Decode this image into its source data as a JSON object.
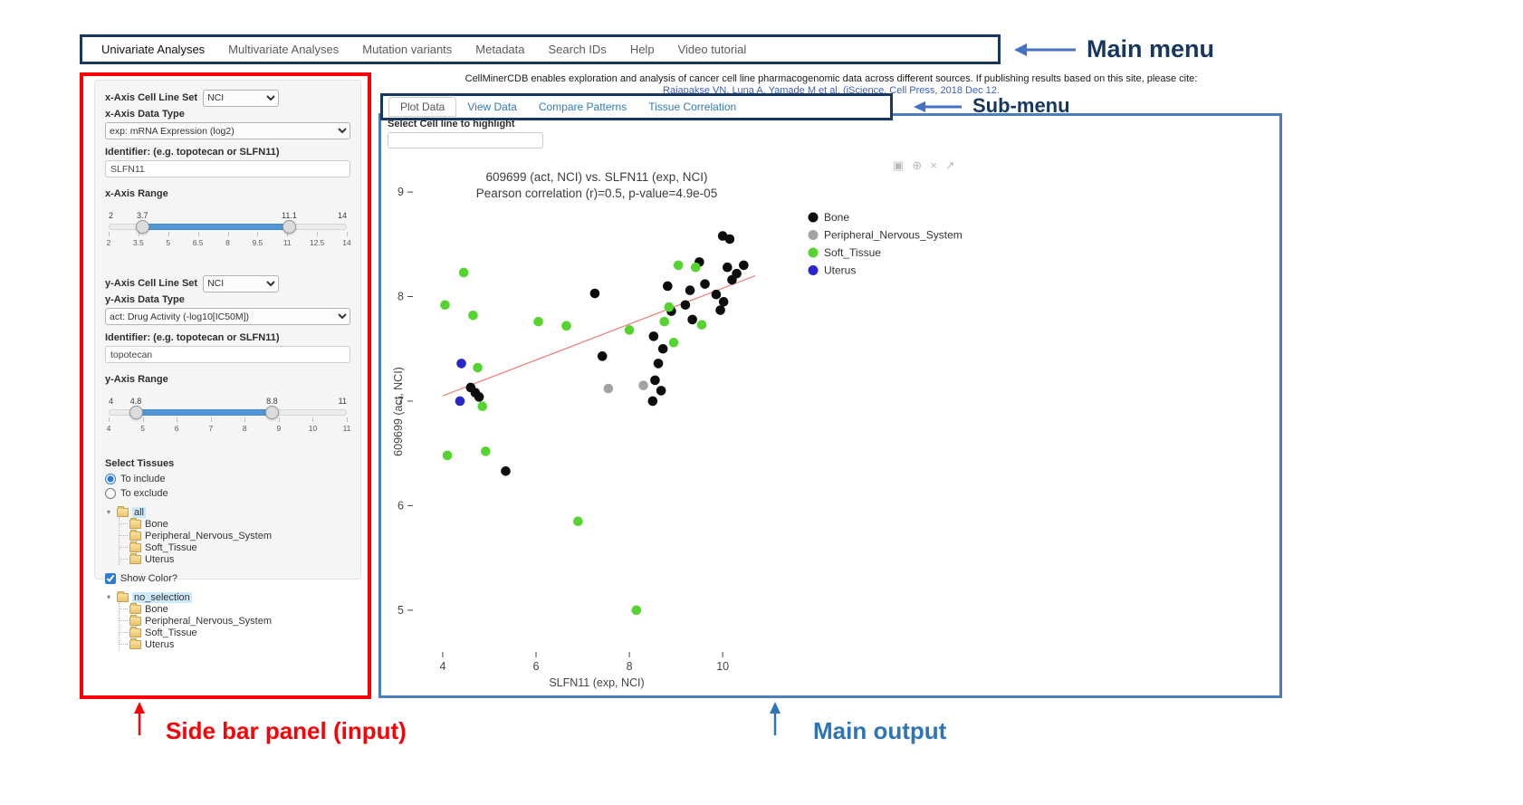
{
  "main_menu": {
    "items": [
      {
        "label": "Univariate Analyses",
        "active": true
      },
      {
        "label": "Multivariate Analyses",
        "active": false
      },
      {
        "label": "Mutation variants",
        "active": false
      },
      {
        "label": "Metadata",
        "active": false
      },
      {
        "label": "Search IDs",
        "active": false
      },
      {
        "label": "Help",
        "active": false
      },
      {
        "label": "Video tutorial",
        "active": false
      }
    ]
  },
  "annotations": {
    "main_menu": "Main menu",
    "sub_menu": "Sub-menu",
    "sidebar": "Side bar panel (input)",
    "main_output": "Main output",
    "colors": {
      "navy": "#17375e",
      "red": "#fb0007",
      "blue": "#2e75b6",
      "arrow_blue": "#4472c4",
      "output_box": "#4a7ebb"
    }
  },
  "citation": {
    "line1": "CellMinerCDB enables exploration and analysis of cancer cell line pharmacogenomic data across different sources. If publishing results based on this site, please cite:",
    "line2": "Rajapakse VN, Luna A, Yamade M et al. (iScience, Cell Press, 2018 Dec 12."
  },
  "sidebar": {
    "x_axis": {
      "cell_line_set_label": "x-Axis Cell Line Set",
      "cell_line_set_value": "NCI",
      "data_type_label": "x-Axis Data Type",
      "data_type_value": "exp: mRNA Expression (log2)",
      "identifier_label": "Identifier: (e.g. topotecan or SLFN11)",
      "identifier_value": "SLFN11",
      "range_label": "x-Axis Range",
      "range": {
        "min": 2,
        "max": 14,
        "from": 3.7,
        "to": 11.1,
        "grid": [
          "2",
          "3.5",
          "5",
          "6.5",
          "8",
          "9.5",
          "11",
          "12.5",
          "14"
        ]
      }
    },
    "y_axis": {
      "cell_line_set_label": "y-Axis Cell Line Set",
      "cell_line_set_value": "NCI",
      "data_type_label": "y-Axis Data Type",
      "data_type_value": "act: Drug Activity (-log10[IC50M])",
      "identifier_label": "Identifier: (e.g. topotecan or SLFN11)",
      "identifier_value": "topotecan",
      "range_label": "y-Axis Range",
      "range": {
        "min": 4,
        "max": 11,
        "from": 4.8,
        "to": 8.8,
        "grid": [
          "4",
          "5",
          "6",
          "7",
          "8",
          "9",
          "10",
          "11"
        ]
      }
    },
    "tissues": {
      "label": "Select Tissues",
      "radio_include": "To include",
      "radio_exclude": "To exclude",
      "include_selected": true,
      "tree_all": {
        "root": "all",
        "children": [
          "Bone",
          "Peripheral_Nervous_System",
          "Soft_Tissue",
          "Uterus"
        ]
      },
      "show_color_label": "Show Color?",
      "show_color_checked": true,
      "tree_color": {
        "root": "no_selection",
        "children": [
          "Bone",
          "Peripheral_Nervous_System",
          "Soft_Tissue",
          "Uterus"
        ]
      }
    }
  },
  "submenu": {
    "tabs": [
      {
        "label": "Plot Data",
        "active": true
      },
      {
        "label": "View Data",
        "active": false
      },
      {
        "label": "Compare Patterns",
        "active": false
      },
      {
        "label": "Tissue Correlation",
        "active": false
      }
    ]
  },
  "main_output": {
    "highlight_label": "Select Cell line to highlight",
    "highlight_value": "",
    "modebar_icons": [
      {
        "name": "camera-icon",
        "glyph": "▣"
      },
      {
        "name": "zoom-in-icon",
        "glyph": "⊕"
      },
      {
        "name": "close-icon",
        "glyph": "×"
      },
      {
        "name": "expand-icon",
        "glyph": "↗"
      }
    ]
  },
  "chart_data": {
    "type": "scatter",
    "title": "609699 (act, NCI) vs. SLFN11 (exp, NCI)",
    "subtitle": "Pearson correlation (r)=0.5, p-value=4.9e-05",
    "xlabel": "SLFN11 (exp, NCI)",
    "ylabel": "609699 (act, NCI)",
    "xlim": [
      3.4,
      11.2
    ],
    "ylim": [
      4.6,
      9.2
    ],
    "xticks": [
      4,
      6,
      8,
      10
    ],
    "yticks": [
      9,
      8,
      7,
      6,
      5
    ],
    "grid": false,
    "legend_position": "right",
    "regression_line": {
      "x1": 4.0,
      "y1": 7.05,
      "x2": 10.7,
      "y2": 8.2,
      "color": "#f08080"
    },
    "series": [
      {
        "name": "Bone",
        "color": "#0d0d0d",
        "points": [
          [
            10.0,
            8.58
          ],
          [
            10.15,
            8.55
          ],
          [
            9.5,
            8.33
          ],
          [
            10.1,
            8.28
          ],
          [
            10.3,
            8.22
          ],
          [
            10.45,
            8.3
          ],
          [
            10.2,
            8.16
          ],
          [
            7.26,
            8.03
          ],
          [
            8.82,
            8.1
          ],
          [
            9.3,
            8.06
          ],
          [
            9.62,
            8.12
          ],
          [
            9.86,
            8.02
          ],
          [
            10.02,
            7.95
          ],
          [
            8.9,
            7.86
          ],
          [
            9.2,
            7.92
          ],
          [
            9.95,
            7.87
          ],
          [
            9.35,
            7.78
          ],
          [
            8.52,
            7.62
          ],
          [
            8.72,
            7.5
          ],
          [
            7.42,
            7.43
          ],
          [
            8.62,
            7.36
          ],
          [
            8.55,
            7.2
          ],
          [
            8.68,
            7.1
          ],
          [
            8.5,
            7.0
          ],
          [
            4.6,
            7.13
          ],
          [
            4.7,
            7.08
          ],
          [
            4.78,
            7.04
          ],
          [
            5.35,
            6.33
          ]
        ]
      },
      {
        "name": "Peripheral_Nervous_System",
        "color": "#a3a3a3",
        "points": [
          [
            7.55,
            7.12
          ],
          [
            8.3,
            7.15
          ]
        ]
      },
      {
        "name": "Soft_Tissue",
        "color": "#55d42f",
        "points": [
          [
            4.45,
            8.23
          ],
          [
            4.05,
            7.92
          ],
          [
            4.65,
            7.82
          ],
          [
            6.05,
            7.76
          ],
          [
            6.65,
            7.72
          ],
          [
            9.05,
            8.3
          ],
          [
            9.42,
            8.28
          ],
          [
            8.0,
            7.68
          ],
          [
            8.75,
            7.76
          ],
          [
            8.85,
            7.9
          ],
          [
            9.55,
            7.73
          ],
          [
            8.95,
            7.56
          ],
          [
            4.75,
            7.32
          ],
          [
            4.85,
            6.95
          ],
          [
            4.1,
            6.48
          ],
          [
            4.92,
            6.52
          ],
          [
            6.9,
            5.85
          ],
          [
            8.15,
            5.0
          ]
        ]
      },
      {
        "name": "Uterus",
        "color": "#2727cc",
        "points": [
          [
            4.4,
            7.36
          ],
          [
            4.37,
            7.0
          ]
        ]
      }
    ]
  }
}
